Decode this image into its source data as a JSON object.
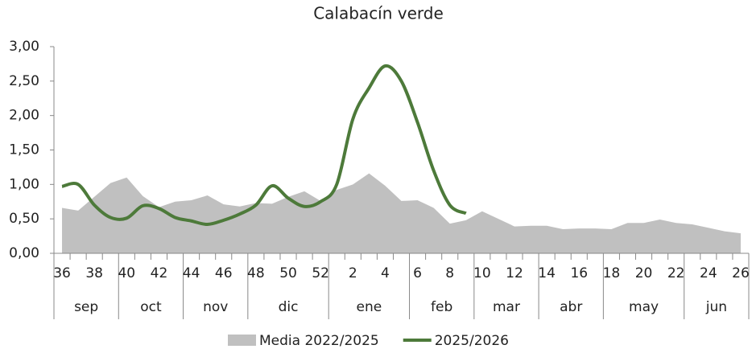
{
  "chart_data": {
    "type": "area+line",
    "title": "Calabacín verde",
    "categories": [
      36,
      null,
      38,
      null,
      40,
      null,
      42,
      null,
      44,
      null,
      46,
      null,
      48,
      null,
      50,
      null,
      52,
      null,
      2,
      null,
      4,
      null,
      6,
      null,
      8,
      null,
      10,
      null,
      12,
      null,
      14,
      null,
      16,
      null,
      18,
      null,
      20,
      null,
      22,
      null,
      24,
      null,
      26
    ],
    "months": [
      "sep",
      null,
      null,
      null,
      "oct",
      null,
      null,
      null,
      "nov",
      null,
      null,
      null,
      "dic",
      null,
      null,
      null,
      null,
      "ene",
      null,
      null,
      null,
      null,
      "feb",
      null,
      null,
      null,
      "mar",
      null,
      null,
      null,
      "abr",
      null,
      null,
      null,
      "may",
      null,
      null,
      null,
      null,
      "jun",
      null,
      null,
      null
    ],
    "series": [
      {
        "name": "Media 2022/2025",
        "type": "area",
        "color": "#c0c0c0",
        "values": [
          0.66,
          0.62,
          0.82,
          1.02,
          1.1,
          0.83,
          0.67,
          0.75,
          0.77,
          0.84,
          0.71,
          0.68,
          0.73,
          0.72,
          0.82,
          0.9,
          0.76,
          0.92,
          1.0,
          1.16,
          0.98,
          0.76,
          0.77,
          0.66,
          0.43,
          0.48,
          0.61,
          0.5,
          0.39,
          0.4,
          0.4,
          0.35,
          0.36,
          0.36,
          0.35,
          0.44,
          0.44,
          0.49,
          0.44,
          0.42,
          0.37,
          0.32,
          0.29
        ]
      },
      {
        "name": "2025/2026",
        "type": "line",
        "color": "#4d7a3a",
        "values": [
          0.97,
          1.0,
          0.7,
          0.52,
          0.51,
          0.69,
          0.65,
          0.52,
          0.47,
          0.42,
          0.48,
          0.57,
          0.7,
          0.98,
          0.8,
          0.68,
          0.75,
          1.0,
          1.95,
          2.4,
          2.72,
          2.5,
          1.9,
          1.2,
          0.7,
          0.58,
          null,
          null,
          null,
          null,
          null,
          null,
          null,
          null,
          null,
          null,
          null,
          null,
          null,
          null,
          null,
          null,
          null
        ]
      }
    ],
    "ylim": [
      0,
      3
    ],
    "yticks": [
      {
        "value": 0,
        "label": "0,00"
      },
      {
        "value": 0.5,
        "label": "0,50"
      },
      {
        "value": 1,
        "label": "1,00"
      },
      {
        "value": 1.5,
        "label": "1,50"
      },
      {
        "value": 2,
        "label": "2,00"
      },
      {
        "value": 2.5,
        "label": "2,50"
      },
      {
        "value": 3,
        "label": "3,00"
      }
    ],
    "grid": false,
    "legend": "bottom"
  }
}
